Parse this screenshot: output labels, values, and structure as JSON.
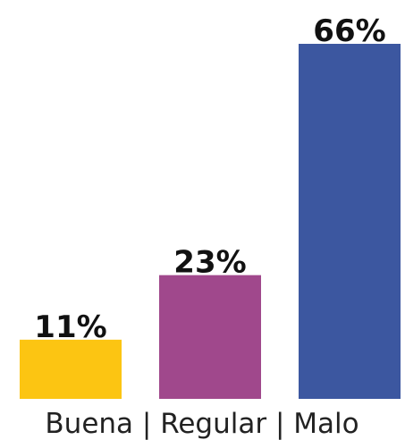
{
  "chart_data": {
    "type": "bar",
    "xlabel": "Buena | Regular | Malo",
    "values": [
      11,
      23,
      66
    ],
    "value_labels": [
      "11%",
      "23%",
      "66%"
    ],
    "colors": [
      "#fcc512",
      "#a0488c",
      "#3c57a0"
    ]
  }
}
